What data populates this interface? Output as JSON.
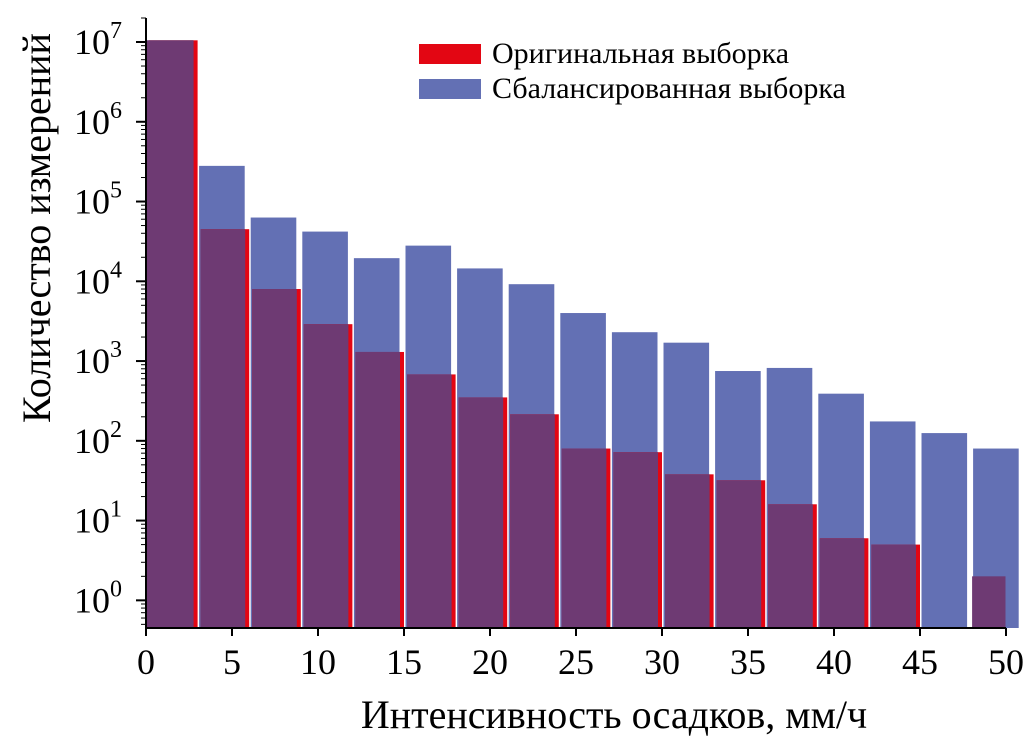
{
  "chart_data": {
    "type": "bar",
    "xlabel": "Интенсивность осадков, мм/ч",
    "ylabel": "Количество измерений",
    "y_scale": "log",
    "xlim": [
      0,
      50
    ],
    "ylim": [
      0.45,
      20000000
    ],
    "x_ticks": [
      "0",
      "5",
      "10",
      "15",
      "20",
      "25",
      "30",
      "35",
      "40",
      "45",
      "50"
    ],
    "y_ticks": [
      {
        "base": "10",
        "exp": "0"
      },
      {
        "base": "10",
        "exp": "1"
      },
      {
        "base": "10",
        "exp": "2"
      },
      {
        "base": "10",
        "exp": "3"
      },
      {
        "base": "10",
        "exp": "4"
      },
      {
        "base": "10",
        "exp": "5"
      },
      {
        "base": "10",
        "exp": "6"
      },
      {
        "base": "10",
        "exp": "7"
      }
    ],
    "legend_position": "top-right",
    "series": [
      {
        "name": "Оригинальная выборка",
        "color": "#e30613",
        "bin_width": 3,
        "bins_start": [
          0,
          3,
          6,
          9,
          12,
          15,
          18,
          21,
          24,
          27,
          30,
          33,
          36,
          39,
          42,
          45
        ],
        "values": [
          10500000,
          45000,
          8000,
          2900,
          1300,
          680,
          350,
          215,
          80,
          72,
          38,
          32,
          16,
          6,
          5,
          0
        ]
      },
      {
        "name": "Сбалансированная выборка",
        "color": "#6370b4",
        "bin_width": 3,
        "bins_start": [
          0,
          3,
          6,
          9,
          12,
          15,
          18,
          21,
          24,
          27,
          30,
          33,
          36,
          39,
          42,
          45,
          48
        ],
        "values": [
          10500000,
          280000,
          63000,
          42000,
          19500,
          28000,
          14500,
          9200,
          4000,
          2300,
          1700,
          750,
          820,
          390,
          175,
          125,
          80
        ]
      }
    ],
    "overlap_color": "#6e3a73",
    "extra_bar": {
      "x_start": 48,
      "x_end": 50,
      "value": 2
    }
  }
}
